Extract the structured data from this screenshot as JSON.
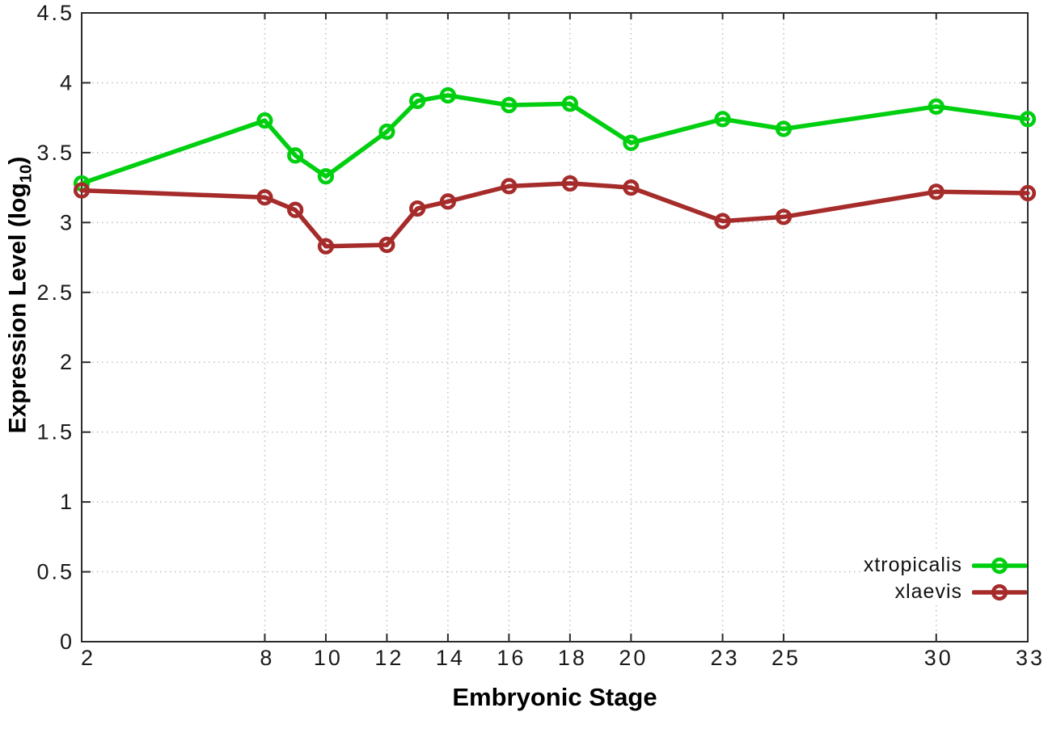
{
  "chart_data": {
    "type": "line",
    "title": "",
    "xlabel": "Embryonic Stage",
    "ylabel": {
      "main": "Expression Level (log",
      "sub": "10",
      "end": ")"
    },
    "xlim": [
      2,
      33
    ],
    "ylim": [
      0,
      4.5
    ],
    "grid": true,
    "legend_position": "bottom-right-inside",
    "x": [
      2,
      8,
      9,
      10,
      12,
      13,
      14,
      16,
      18,
      20,
      23,
      25,
      30,
      33
    ],
    "x_ticks": [
      "2",
      "8",
      "10",
      "12",
      "14",
      "16",
      "18",
      "20",
      "23",
      "25",
      "30",
      "33"
    ],
    "y_ticks": [
      "0",
      "0.5",
      "1",
      "1.5",
      "2",
      "2.5",
      "3",
      "3.5",
      "4",
      "4.5"
    ],
    "series": [
      {
        "name": "xtropicalis",
        "color": "#00cf10",
        "marker": "open-circle",
        "values": [
          3.28,
          3.73,
          3.48,
          3.33,
          3.65,
          3.87,
          3.91,
          3.84,
          3.85,
          3.57,
          3.74,
          3.67,
          3.83,
          3.74
        ]
      },
      {
        "name": "xlaevis",
        "color": "#a62b2b",
        "marker": "open-circle",
        "values": [
          3.23,
          3.18,
          3.09,
          2.83,
          2.84,
          3.1,
          3.15,
          3.26,
          3.28,
          3.25,
          3.01,
          3.04,
          3.22,
          3.21
        ]
      }
    ]
  }
}
